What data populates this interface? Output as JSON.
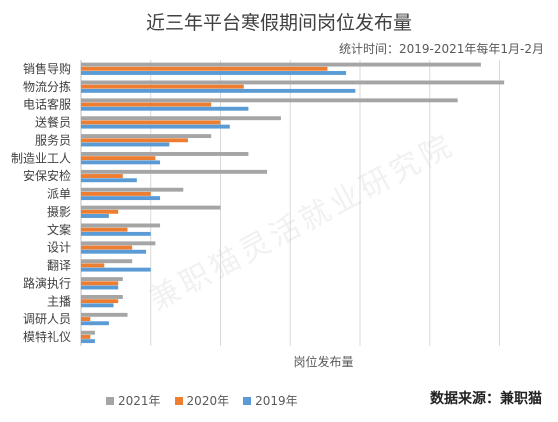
{
  "chart_data": {
    "type": "bar",
    "orientation": "horizontal",
    "title": "近三年平台寒假期间岗位发布量",
    "subtitle": "统计时间：2019-2021年每年1月-2月",
    "xlabel": "岗位发布量",
    "ylabel": "",
    "xlim": [
      0,
      100
    ],
    "grid": true,
    "legend_position": "bottom-left",
    "categories": [
      "销售导购",
      "物流分拣",
      "电话客服",
      "送餐员",
      "服务员",
      "制造业工人",
      "安保安检",
      "派单",
      "摄影",
      "文案",
      "设计",
      "翻译",
      "路演执行",
      "主播",
      "调研人员",
      "模特礼仪"
    ],
    "series": [
      {
        "name": "2021年",
        "color": "#a5a5a5",
        "values": [
          86,
          91,
          81,
          43,
          28,
          36,
          40,
          22,
          30,
          17,
          16,
          11,
          9,
          9,
          10,
          3
        ]
      },
      {
        "name": "2020年",
        "color": "#ed7d31",
        "values": [
          53,
          35,
          28,
          30,
          23,
          16,
          9,
          15,
          8,
          10,
          11,
          5,
          8,
          8,
          2,
          2
        ]
      },
      {
        "name": "2019年",
        "color": "#5b9bd5",
        "values": [
          57,
          59,
          36,
          32,
          19,
          17,
          12,
          17,
          6,
          15,
          14,
          15,
          8,
          7,
          6,
          3
        ]
      }
    ]
  },
  "source_note": "数据来源：兼职猫",
  "watermark": "兼职猫灵活就业研究院"
}
